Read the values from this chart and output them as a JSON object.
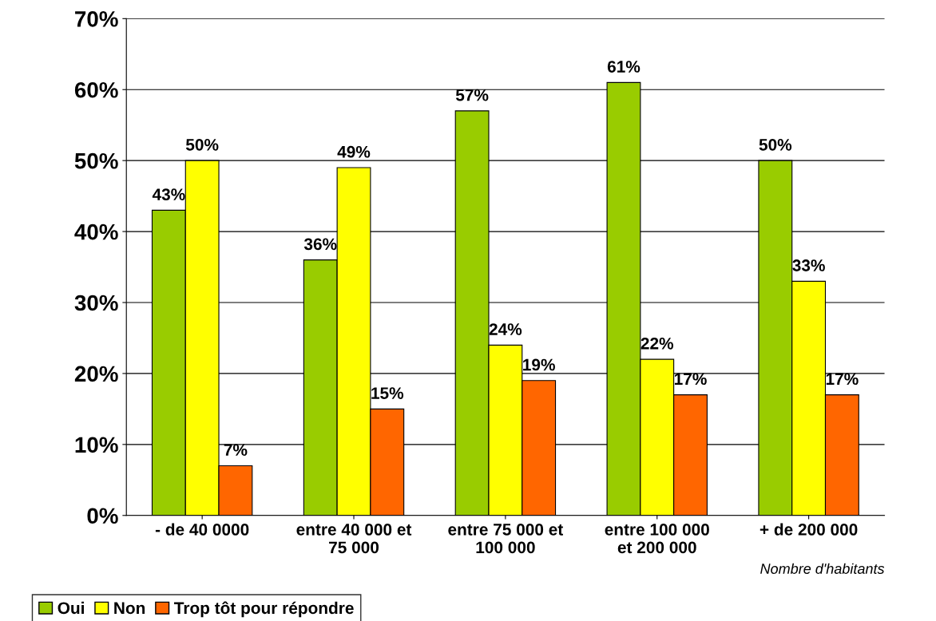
{
  "chart_data": {
    "type": "bar",
    "categories": [
      "- de 40 0000",
      "entre 40 000 et\n75 000",
      "entre 75 000 et\n100 000",
      "entre 100 000\net 200 000",
      "+ de 200 000"
    ],
    "series": [
      {
        "name": "Oui",
        "color": "#99cc00",
        "values": [
          43,
          36,
          57,
          61,
          50
        ],
        "value_labels": [
          "43%",
          "36%",
          "57%",
          "61%",
          "50%"
        ]
      },
      {
        "name": "Non",
        "color": "#ffff00",
        "values": [
          50,
          49,
          24,
          22,
          33
        ],
        "value_labels": [
          "50%",
          "49%",
          "24%",
          "22%",
          "33%"
        ]
      },
      {
        "name": "Trop tôt pour répondre",
        "color": "#ff6600",
        "values": [
          7,
          15,
          19,
          17,
          17
        ],
        "value_labels": [
          "7%",
          "15%",
          "19%",
          "17%",
          "17%"
        ]
      }
    ],
    "xlabel": "Nombre d'habitants",
    "ylim": [
      0,
      70
    ],
    "yticks": [
      {
        "value": 0,
        "label": "0%"
      },
      {
        "value": 10,
        "label": "10%"
      },
      {
        "value": 20,
        "label": "20%"
      },
      {
        "value": 30,
        "label": "30%"
      },
      {
        "value": 40,
        "label": "40%"
      },
      {
        "value": 50,
        "label": "50%"
      },
      {
        "value": 60,
        "label": "60%"
      },
      {
        "value": 70,
        "label": "70%"
      }
    ],
    "grid": "y",
    "legend": "bottom left"
  }
}
